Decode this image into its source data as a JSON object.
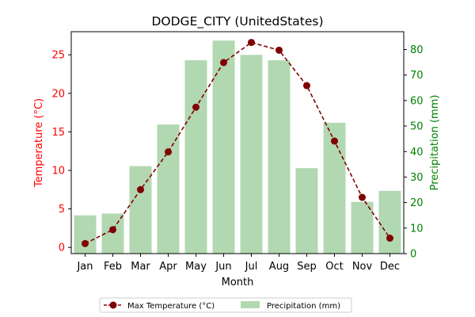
{
  "chart_data": {
    "type": "bar+line",
    "title": "DODGE_CITY (UnitedStates)",
    "xlabel": "Month",
    "categories": [
      "Jan",
      "Feb",
      "Mar",
      "Apr",
      "May",
      "Jun",
      "Jul",
      "Aug",
      "Sep",
      "Oct",
      "Nov",
      "Dec"
    ],
    "left_axis": {
      "label": "Temperature (°C)",
      "color": "#ff0000",
      "ylim": [
        -0.8,
        28
      ],
      "ticks": [
        0,
        5,
        10,
        15,
        20,
        25
      ]
    },
    "right_axis": {
      "label": "Precipitation (mm)",
      "color": "#008000",
      "ylim": [
        0,
        87
      ],
      "ticks": [
        0,
        10,
        20,
        30,
        40,
        50,
        60,
        70,
        80
      ]
    },
    "series": [
      {
        "name": "Max Temperature (°C)",
        "kind": "line",
        "axis": "left",
        "color": "#800000",
        "line_style": "dashed",
        "marker": "circle",
        "values": [
          0.5,
          2.3,
          7.5,
          12.4,
          18.2,
          24.0,
          26.6,
          25.6,
          21.0,
          13.8,
          6.5,
          1.2
        ]
      },
      {
        "name": "Precipitation (mm)",
        "kind": "bar",
        "axis": "right",
        "color": "#b2d8b2",
        "values": [
          15.0,
          15.7,
          34.3,
          50.6,
          75.8,
          83.5,
          77.9,
          75.8,
          33.5,
          51.3,
          20.3,
          24.6
        ]
      }
    ],
    "legend": {
      "placement": "bottom-center",
      "columns": 2
    },
    "grid": false
  }
}
